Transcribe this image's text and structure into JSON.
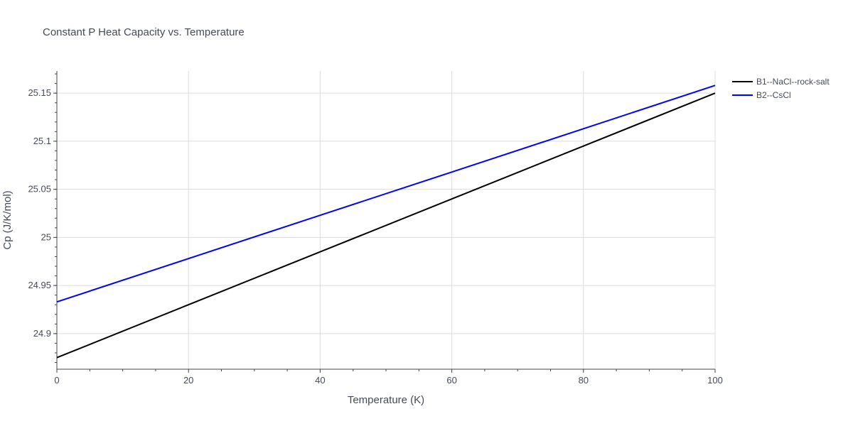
{
  "chart_data": {
    "type": "line",
    "title": "Constant P Heat Capacity vs. Temperature",
    "xlabel": "Temperature (K)",
    "ylabel": "Cp (J/K/mol)",
    "xlim": [
      0,
      100
    ],
    "ylim": [
      24.863,
      25.173
    ],
    "x_ticks": [
      0,
      20,
      40,
      60,
      80,
      100
    ],
    "x_tick_labels": [
      "0",
      "20",
      "40",
      "60",
      "80",
      "100"
    ],
    "y_ticks": [
      24.9,
      24.95,
      25,
      25.05,
      25.1,
      25.15
    ],
    "y_tick_labels": [
      "24.9",
      "24.95",
      "25",
      "25.05",
      "25.1",
      "25.15"
    ],
    "grid": true,
    "legend_position": "top-right",
    "series": [
      {
        "name": "B1--NaCl--rock-salt",
        "color": "#000000",
        "x": [
          0,
          20,
          40,
          60,
          80,
          100
        ],
        "y": [
          24.875,
          24.93,
          24.985,
          25.04,
          25.095,
          25.15
        ]
      },
      {
        "name": "B2--CsCl",
        "color": "#0000ff",
        "x": [
          0,
          20,
          40,
          60,
          80,
          100
        ],
        "y": [
          24.933,
          24.978,
          25.023,
          25.068,
          25.113,
          25.158
        ]
      }
    ]
  }
}
